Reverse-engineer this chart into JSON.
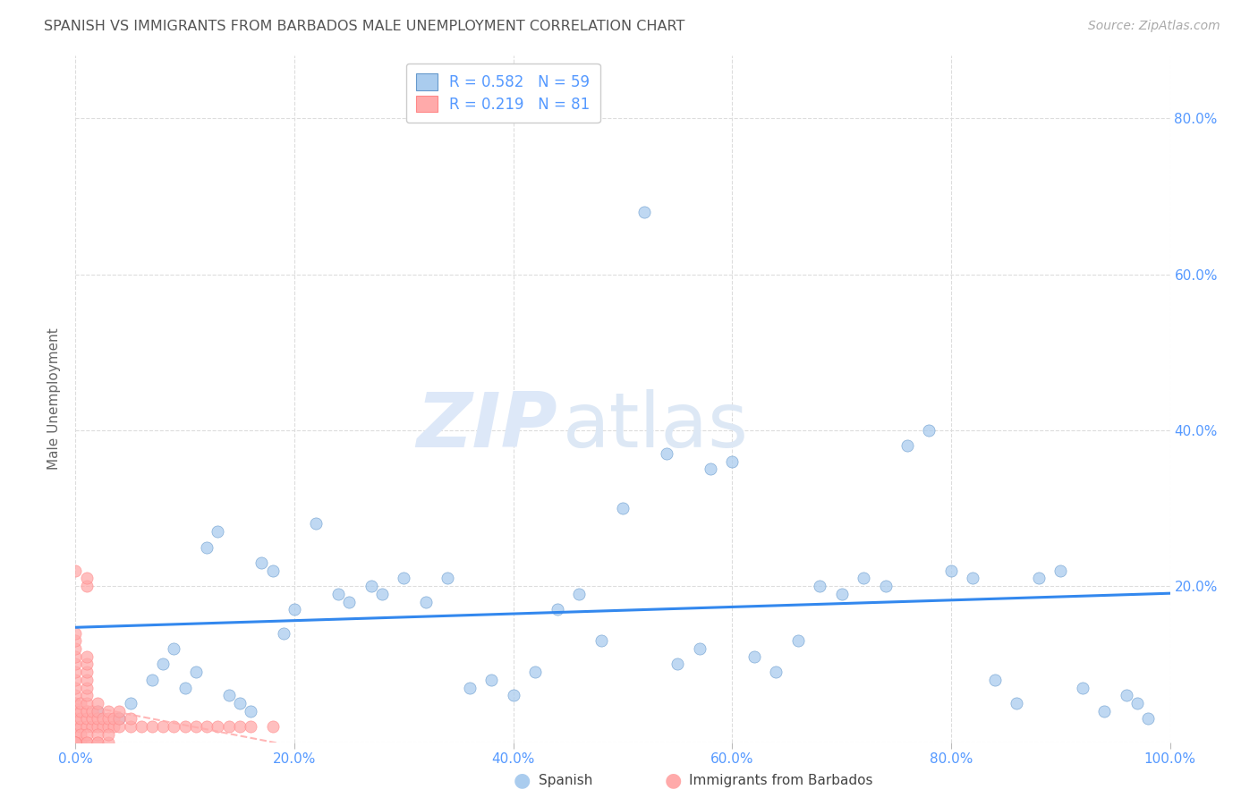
{
  "title": "SPANISH VS IMMIGRANTS FROM BARBADOS MALE UNEMPLOYMENT CORRELATION CHART",
  "source": "Source: ZipAtlas.com",
  "ylabel": "Male Unemployment",
  "xlim": [
    0.0,
    1.0
  ],
  "ylim": [
    0.0,
    0.88
  ],
  "background_color": "#ffffff",
  "grid_color": "#dddddd",
  "R_spanish": 0.582,
  "N_spanish": 59,
  "R_barbados": 0.219,
  "N_barbados": 81,
  "axis_tick_color": "#5599ff",
  "title_color": "#555555",
  "spanish_scatter_color": "#aaccee",
  "barbados_scatter_color": "#ffaaaa",
  "spanish_edge_color": "#6699cc",
  "barbados_edge_color": "#ff8888",
  "spanish_line_color": "#3388ee",
  "barbados_line_color": "#ffaaaa",
  "spanish_x": [
    0.02,
    0.04,
    0.05,
    0.07,
    0.08,
    0.09,
    0.1,
    0.11,
    0.12,
    0.13,
    0.14,
    0.15,
    0.16,
    0.17,
    0.18,
    0.19,
    0.2,
    0.22,
    0.24,
    0.25,
    0.27,
    0.28,
    0.3,
    0.32,
    0.34,
    0.36,
    0.38,
    0.4,
    0.42,
    0.44,
    0.46,
    0.48,
    0.5,
    0.52,
    0.54,
    0.55,
    0.57,
    0.58,
    0.6,
    0.62,
    0.64,
    0.66,
    0.68,
    0.7,
    0.72,
    0.74,
    0.76,
    0.78,
    0.8,
    0.82,
    0.84,
    0.86,
    0.88,
    0.9,
    0.92,
    0.94,
    0.96,
    0.97,
    0.98
  ],
  "spanish_y": [
    0.04,
    0.03,
    0.05,
    0.08,
    0.1,
    0.12,
    0.07,
    0.09,
    0.25,
    0.27,
    0.06,
    0.05,
    0.04,
    0.23,
    0.22,
    0.14,
    0.17,
    0.28,
    0.19,
    0.18,
    0.2,
    0.19,
    0.21,
    0.18,
    0.21,
    0.07,
    0.08,
    0.06,
    0.09,
    0.17,
    0.19,
    0.13,
    0.3,
    0.68,
    0.37,
    0.1,
    0.12,
    0.35,
    0.36,
    0.11,
    0.09,
    0.13,
    0.2,
    0.19,
    0.21,
    0.2,
    0.38,
    0.4,
    0.22,
    0.21,
    0.08,
    0.05,
    0.21,
    0.22,
    0.07,
    0.04,
    0.06,
    0.05,
    0.03
  ],
  "barbados_x": [
    0.0,
    0.0,
    0.0,
    0.0,
    0.0,
    0.0,
    0.0,
    0.0,
    0.0,
    0.0,
    0.0,
    0.0,
    0.0,
    0.0,
    0.0,
    0.005,
    0.005,
    0.005,
    0.005,
    0.01,
    0.01,
    0.01,
    0.01,
    0.01,
    0.01,
    0.01,
    0.01,
    0.01,
    0.01,
    0.01,
    0.01,
    0.015,
    0.015,
    0.015,
    0.02,
    0.02,
    0.02,
    0.02,
    0.025,
    0.025,
    0.03,
    0.03,
    0.03,
    0.035,
    0.035,
    0.04,
    0.04,
    0.04,
    0.05,
    0.05,
    0.06,
    0.07,
    0.08,
    0.09,
    0.1,
    0.11,
    0.12,
    0.13,
    0.14,
    0.15,
    0.16,
    0.18,
    0.0,
    0.0,
    0.0,
    0.005,
    0.005,
    0.01,
    0.01,
    0.01,
    0.02,
    0.02,
    0.02,
    0.03,
    0.03,
    0.0,
    0.0,
    0.0,
    0.0,
    0.0
  ],
  "barbados_y": [
    0.02,
    0.03,
    0.04,
    0.05,
    0.06,
    0.07,
    0.08,
    0.09,
    0.1,
    0.11,
    0.12,
    0.13,
    0.14,
    0.0,
    0.01,
    0.02,
    0.03,
    0.04,
    0.05,
    0.02,
    0.03,
    0.04,
    0.05,
    0.06,
    0.07,
    0.08,
    0.09,
    0.1,
    0.11,
    0.2,
    0.21,
    0.02,
    0.03,
    0.04,
    0.02,
    0.03,
    0.04,
    0.05,
    0.02,
    0.03,
    0.02,
    0.03,
    0.04,
    0.02,
    0.03,
    0.02,
    0.03,
    0.04,
    0.02,
    0.03,
    0.02,
    0.02,
    0.02,
    0.02,
    0.02,
    0.02,
    0.02,
    0.02,
    0.02,
    0.02,
    0.02,
    0.02,
    0.22,
    0.0,
    0.0,
    0.0,
    0.01,
    0.0,
    0.01,
    0.0,
    0.0,
    0.01,
    0.0,
    0.0,
    0.01,
    0.0,
    0.0,
    0.0,
    0.0,
    0.0
  ]
}
